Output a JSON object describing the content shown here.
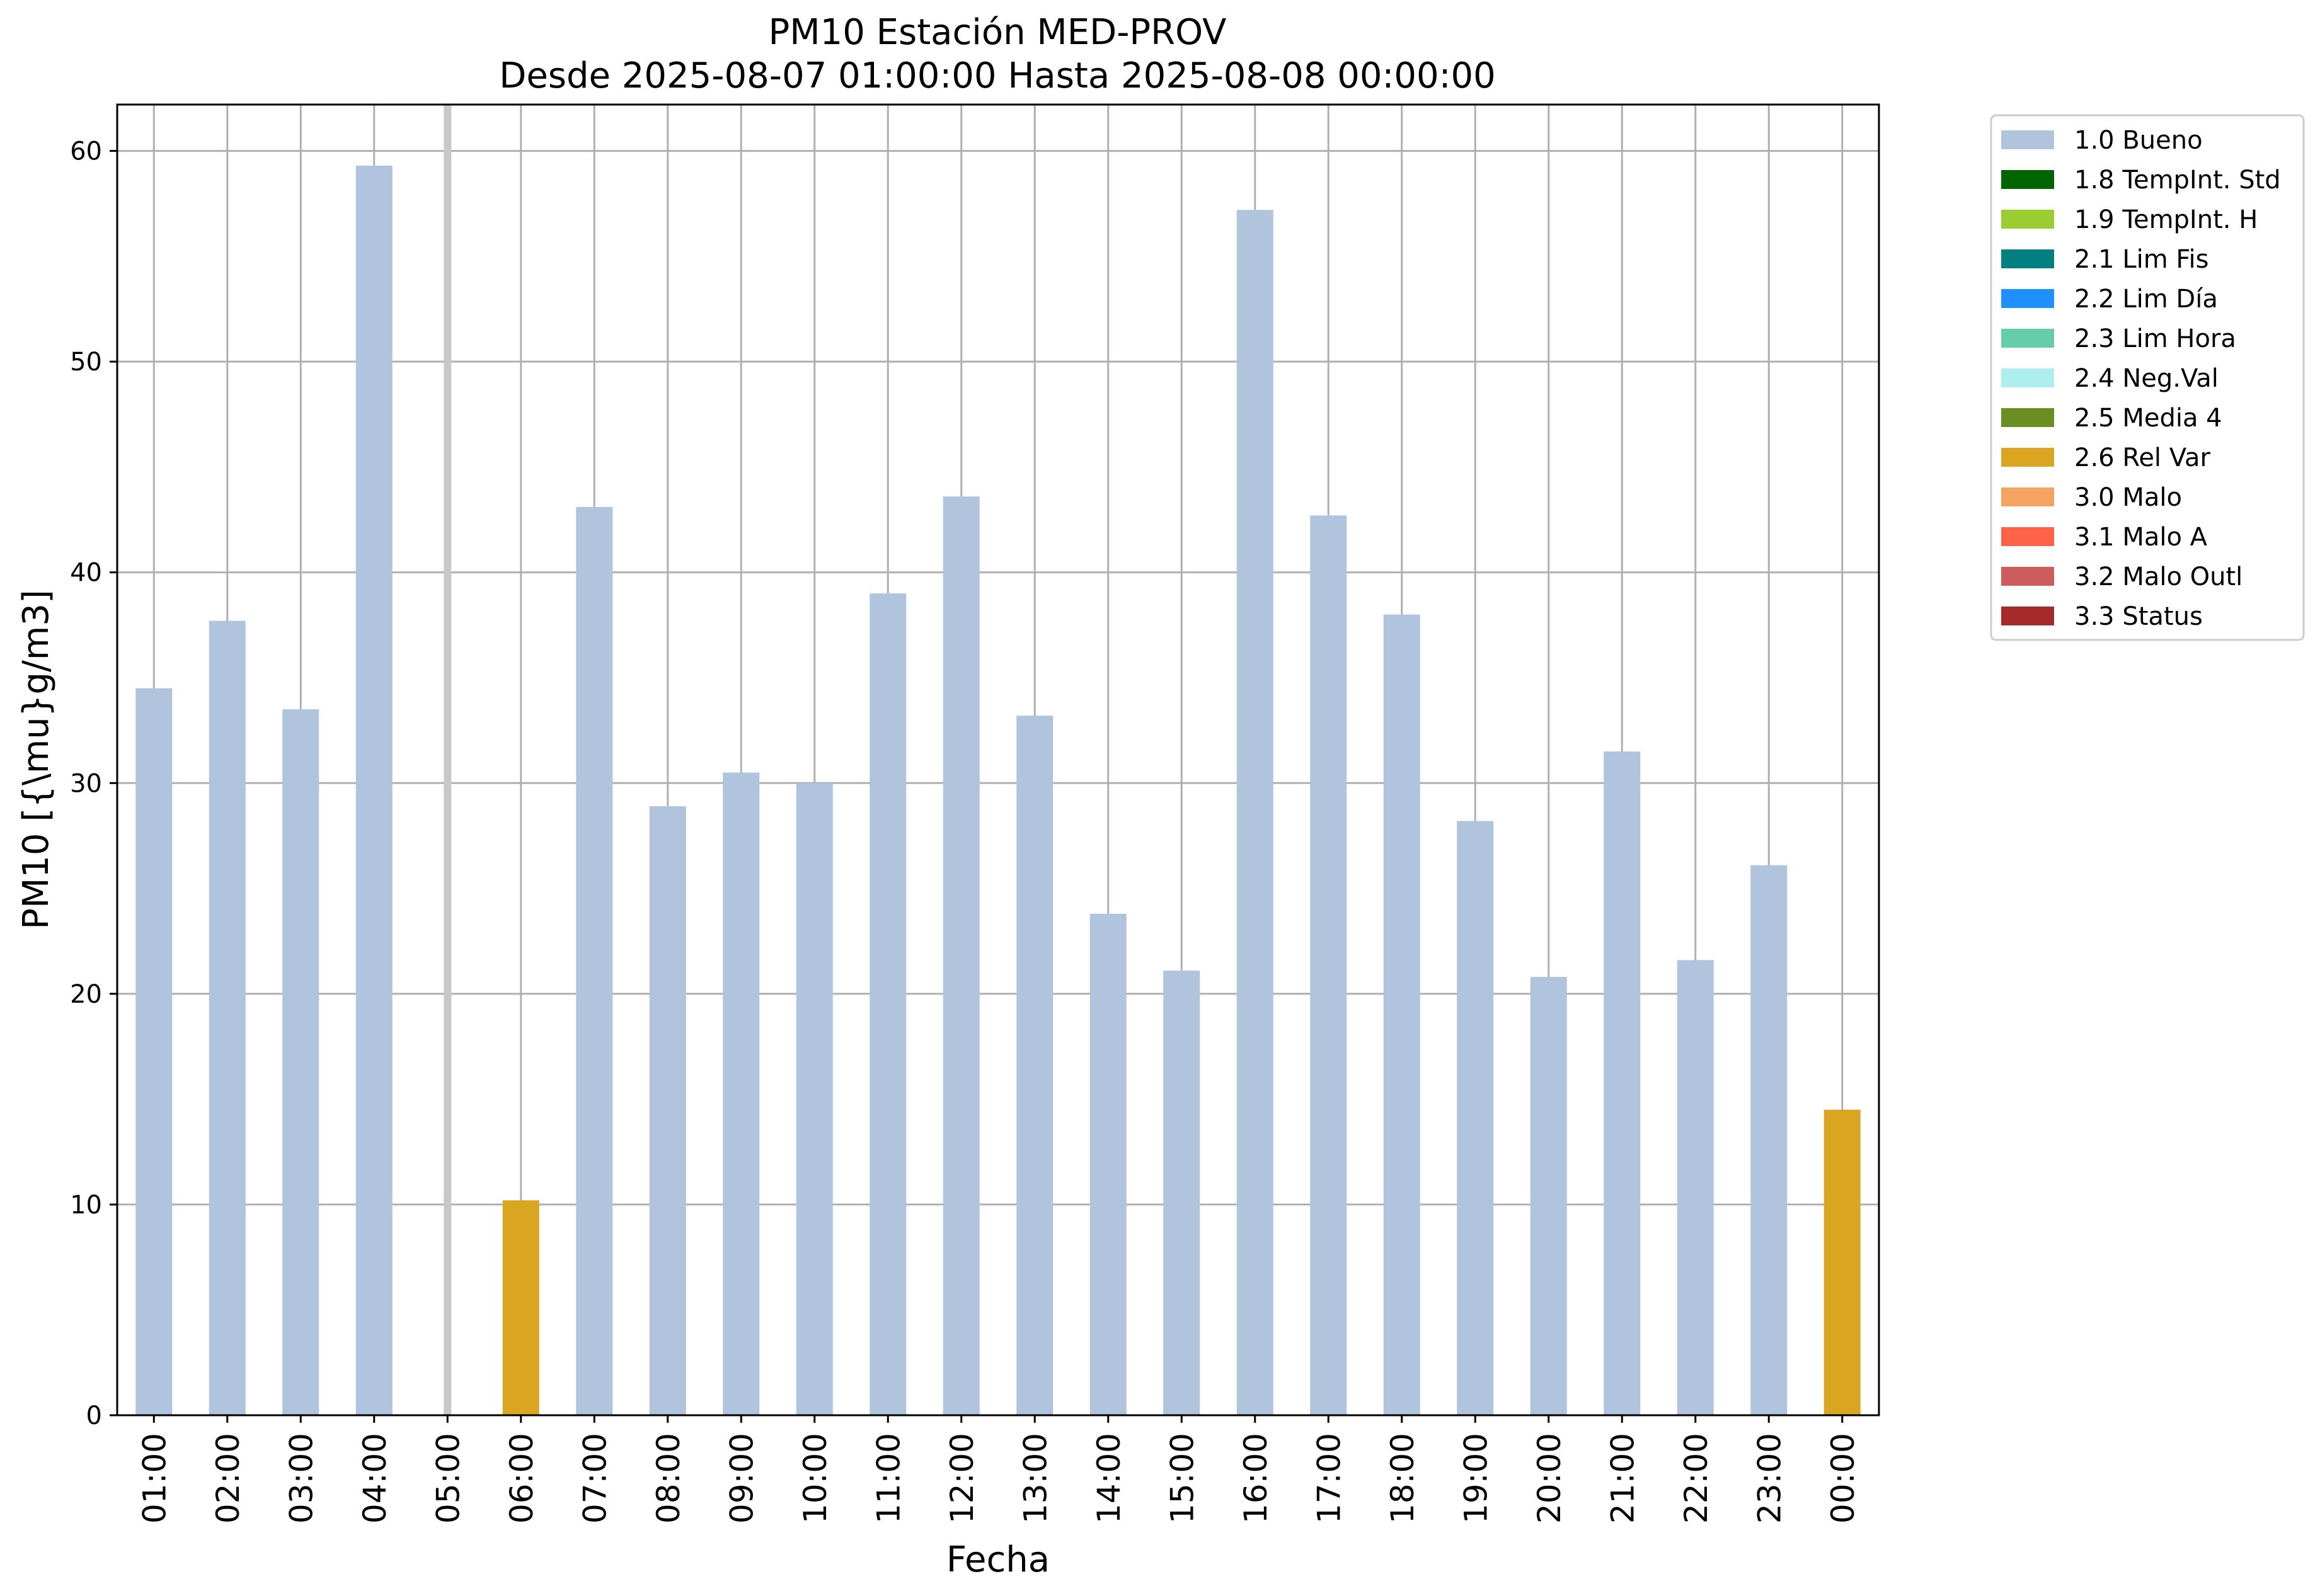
{
  "chart_data": {
    "type": "bar",
    "title": "PM10 Estación MED-PROV",
    "subtitle": "Desde 2025-08-07 01:00:00 Hasta 2025-08-08 00:00:00",
    "xlabel": "Fecha",
    "ylabel": "PM10 [{\\mu}g/m3]",
    "ylim": [
      0,
      62.2
    ],
    "yticks": [
      0,
      10,
      20,
      30,
      40,
      50,
      60
    ],
    "grid": true,
    "legend_position": "outside right, top",
    "categories": [
      "01:00",
      "02:00",
      "03:00",
      "04:00",
      "05:00",
      "06:00",
      "07:00",
      "08:00",
      "09:00",
      "10:00",
      "11:00",
      "12:00",
      "13:00",
      "14:00",
      "15:00",
      "16:00",
      "17:00",
      "18:00",
      "19:00",
      "20:00",
      "21:00",
      "22:00",
      "23:00",
      "00:00"
    ],
    "values": [
      34.5,
      37.7,
      33.5,
      59.3,
      null,
      10.2,
      43.1,
      28.9,
      30.5,
      30.0,
      39.0,
      43.6,
      33.2,
      23.8,
      21.1,
      57.2,
      42.7,
      38.0,
      28.2,
      20.8,
      31.5,
      21.6,
      26.1,
      14.5
    ],
    "flags": [
      "1.0 Bueno",
      "1.0 Bueno",
      "1.0 Bueno",
      "1.0 Bueno",
      null,
      "2.6 Rel Var",
      "1.0 Bueno",
      "1.0 Bueno",
      "1.0 Bueno",
      "1.0 Bueno",
      "1.0 Bueno",
      "1.0 Bueno",
      "1.0 Bueno",
      "1.0 Bueno",
      "1.0 Bueno",
      "1.0 Bueno",
      "1.0 Bueno",
      "1.0 Bueno",
      "1.0 Bueno",
      "1.0 Bueno",
      "1.0 Bueno",
      "1.0 Bueno",
      "1.0 Bueno",
      "2.6 Rel Var"
    ],
    "missing_marker_color": "#c8c8c8",
    "legend": [
      {
        "label": "1.0 Bueno",
        "color": "#b0c4de"
      },
      {
        "label": "1.8 TempInt. Std",
        "color": "#006400"
      },
      {
        "label": "1.9 TempInt. H",
        "color": "#9acd32"
      },
      {
        "label": "2.1 Lim Fis",
        "color": "#008080"
      },
      {
        "label": "2.2 Lim Día",
        "color": "#1e90ff"
      },
      {
        "label": "2.3 Lim Hora",
        "color": "#66cdaa"
      },
      {
        "label": "2.4 Neg.Val",
        "color": "#afeeee"
      },
      {
        "label": "2.5 Media 4",
        "color": "#6b8e23"
      },
      {
        "label": "2.6 Rel Var",
        "color": "#daa520"
      },
      {
        "label": "3.0 Malo",
        "color": "#f4a460"
      },
      {
        "label": "3.1 Malo A",
        "color": "#ff6347"
      },
      {
        "label": "3.2 Malo Outl",
        "color": "#cd5c5c"
      },
      {
        "label": "3.3 Status",
        "color": "#a52a2a"
      }
    ]
  }
}
